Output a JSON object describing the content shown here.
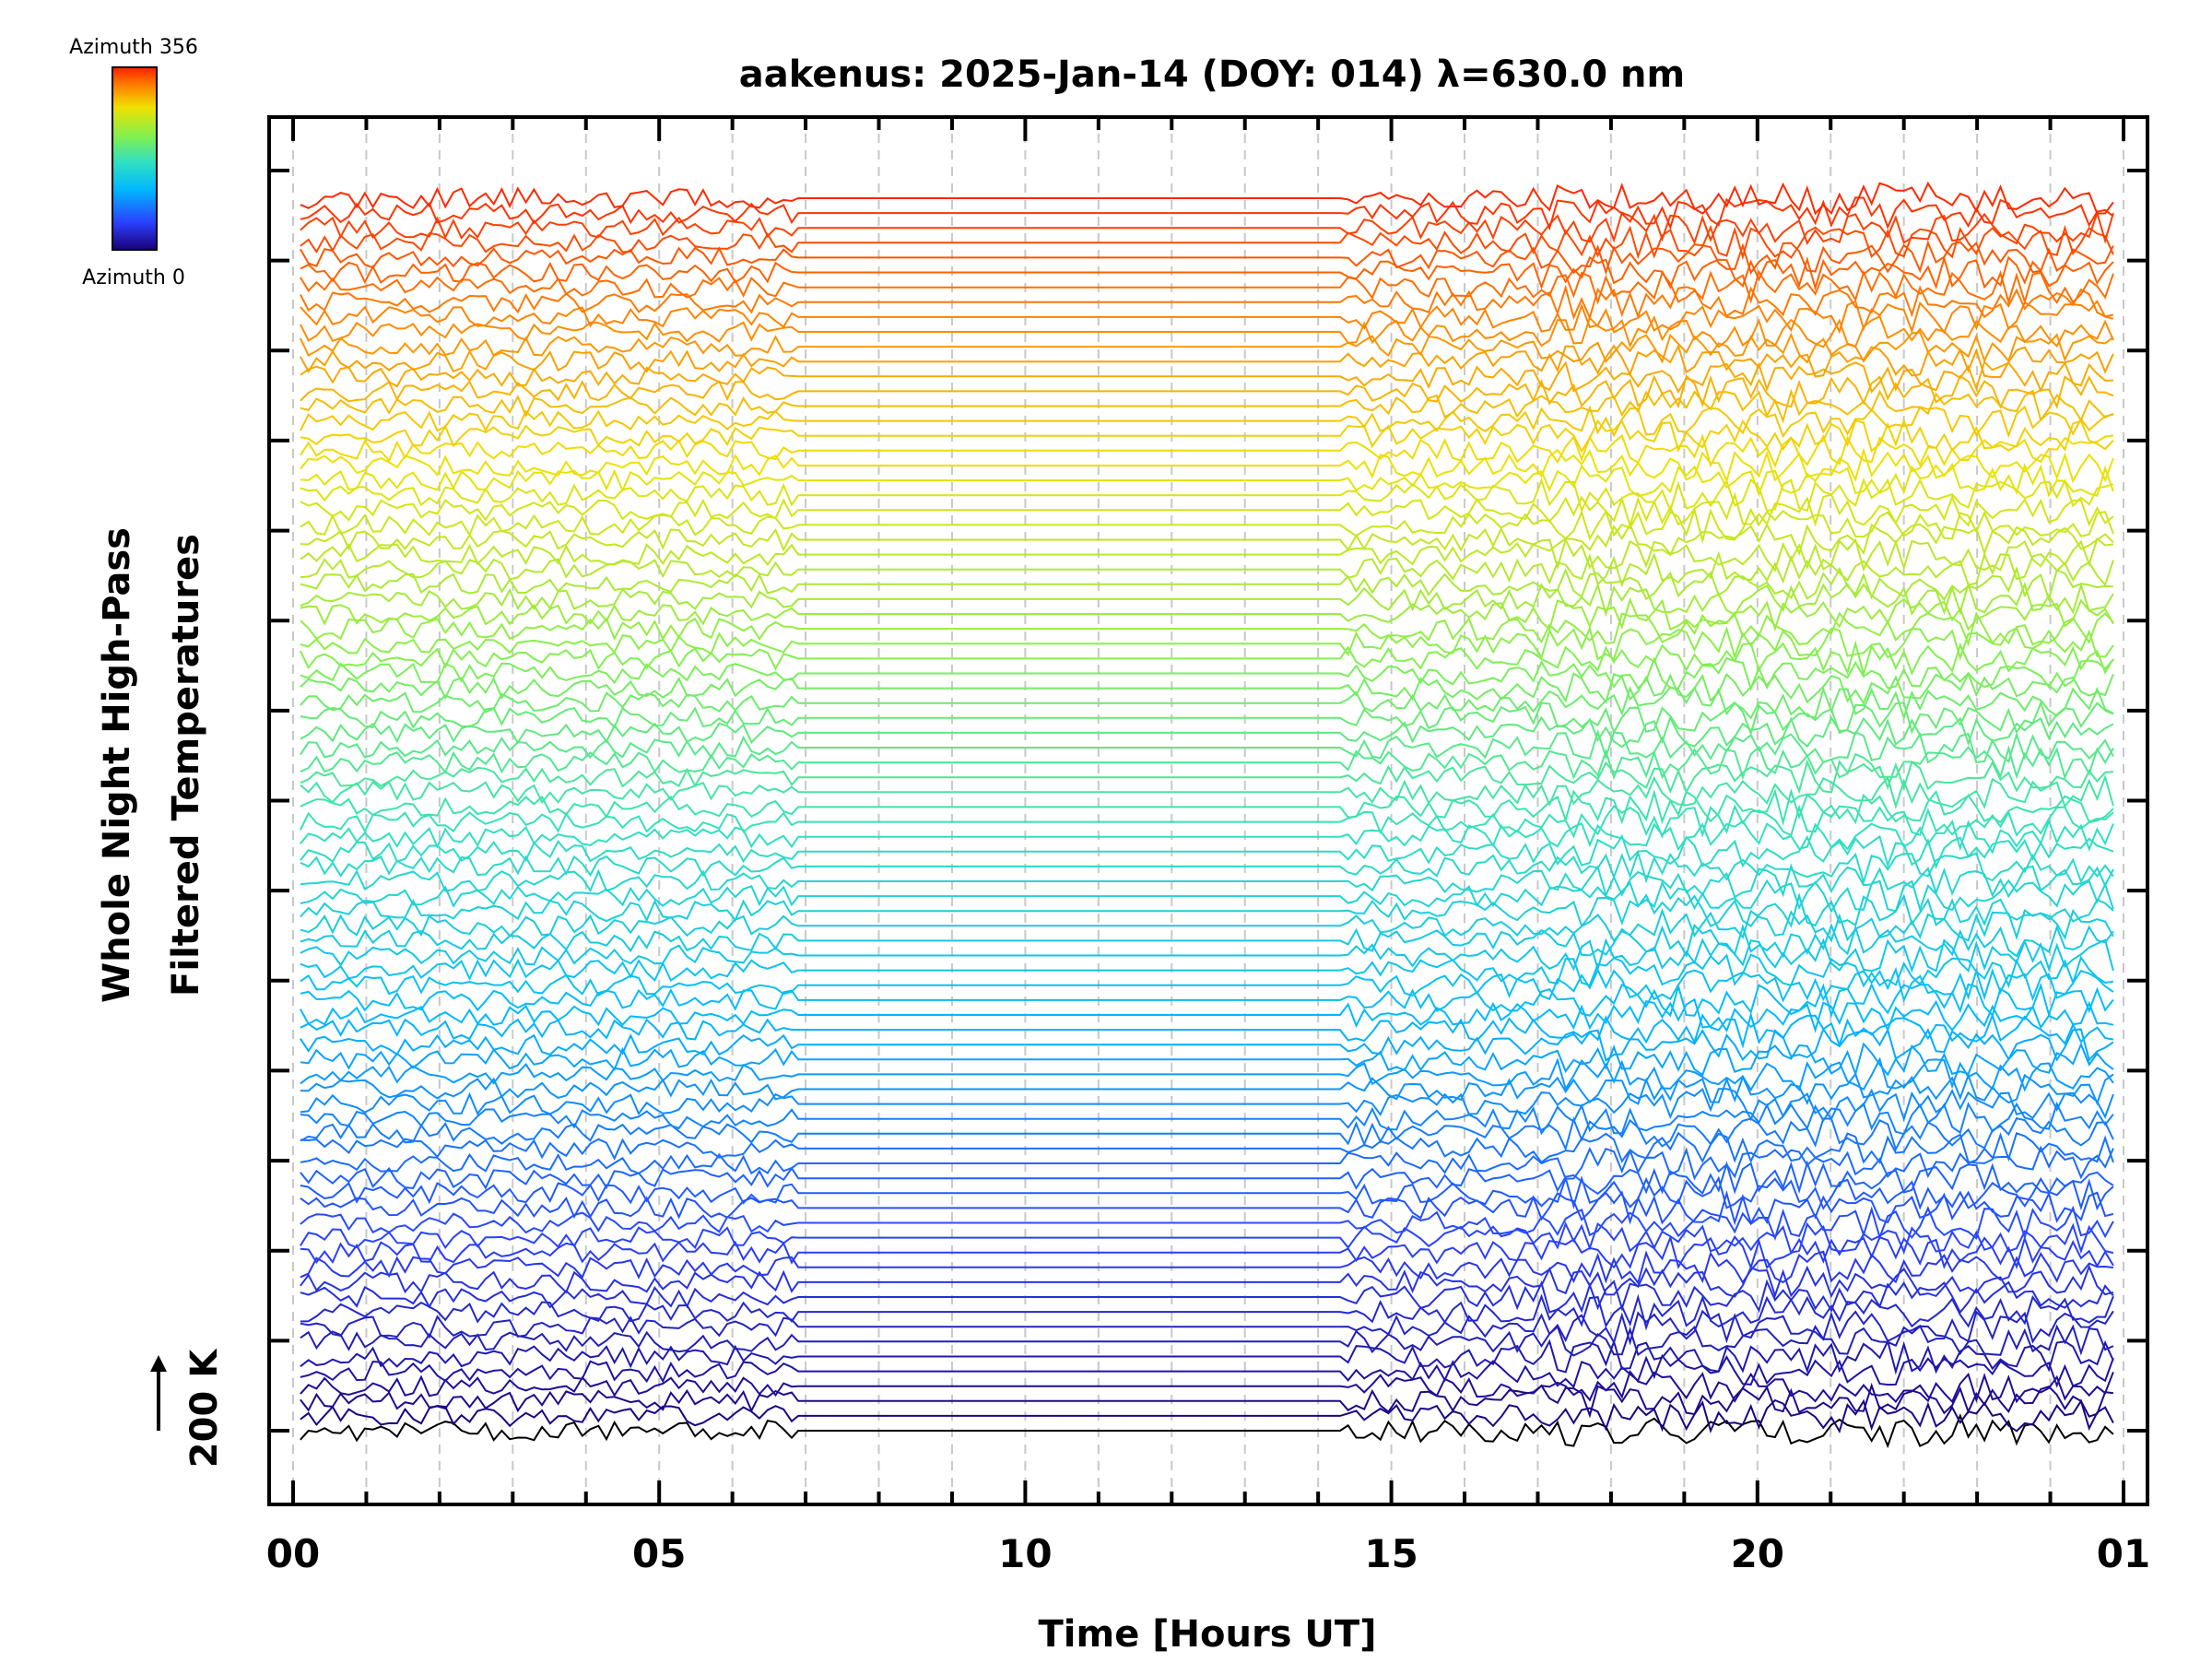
{
  "chart_data": {
    "type": "line",
    "title": "aakenus: 2025-Jan-14 (DOY: 014) λ=630.0 nm",
    "xlabel": "Time [Hours UT]",
    "ylabel_line1": "Whole Night High-Pass",
    "ylabel_line2": "Filtered Temperatures",
    "scale_bar_label": "200 K",
    "colorbar": {
      "top_label": "Azimuth 356",
      "bottom_label": "Azimuth 0",
      "min": 0,
      "max": 356,
      "colormap": "rainbow"
    },
    "x_range_hours": [
      24,
      49
    ],
    "x_ticks": [
      {
        "hour": 24,
        "label": "00"
      },
      {
        "hour": 29,
        "label": "05"
      },
      {
        "hour": 34,
        "label": "10"
      },
      {
        "hour": 39,
        "label": "15"
      },
      {
        "hour": 44,
        "label": "20"
      },
      {
        "hour": 49,
        "label": "01"
      }
    ],
    "data_gap_hours": [
      30.9,
      38.3
    ],
    "trace_count": 84,
    "trace_offset_K": 25,
    "major_y_ticks": 16,
    "grid": true,
    "legend": "colorbar top-left"
  }
}
